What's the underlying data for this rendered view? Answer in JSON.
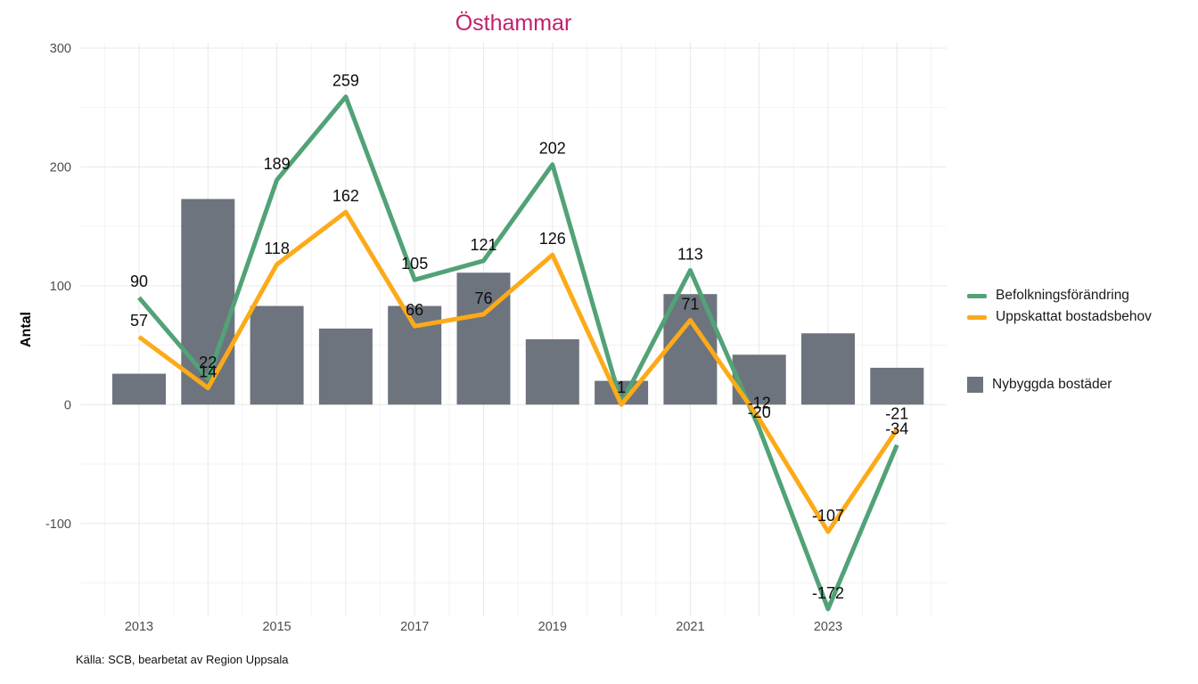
{
  "title": "Östhammar",
  "caption": "Källa: SCB, bearbetat av Region Uppsala",
  "y_axis": {
    "label": "Antal",
    "ticks": [
      300,
      200,
      100,
      0,
      -100
    ],
    "minor_ticks": [
      250,
      150,
      50,
      -50,
      -150
    ]
  },
  "x_axis": {
    "ticks": [
      "2013",
      "2015",
      "2017",
      "2019",
      "2021",
      "2023"
    ]
  },
  "legend": {
    "line_items": [
      {
        "label": "Befolkningsförändring",
        "color": "#52a277"
      },
      {
        "label": "Uppskattat bostadsbehov",
        "color": "#fcaa19"
      }
    ],
    "bar_item": {
      "label": "Nybyggda bostäder",
      "color": "#6d747d"
    }
  },
  "colors": {
    "title": "#c1206e",
    "green_line": "#52a277",
    "orange_line": "#fcaa19",
    "bar": "#6d747d",
    "grid_major": "#e8e8e8",
    "grid_minor": "#f3f3f3",
    "tick_text": "#4d4d4d",
    "label_text": "#0d0d0d"
  },
  "chart_data": {
    "type": "bar+line combo",
    "title": "Östhammar",
    "ylabel": "Antal",
    "xlabel": "",
    "ylim": [
      -180,
      305
    ],
    "grid": true,
    "legend_position": "right",
    "categories": [
      2013,
      2014,
      2015,
      2016,
      2017,
      2018,
      2019,
      2020,
      2021,
      2022,
      2023,
      2024
    ],
    "series": [
      {
        "name": "Nybyggda bostäder",
        "type": "bar",
        "color": "#6d747d",
        "values": [
          26,
          173,
          83,
          64,
          83,
          111,
          55,
          20,
          93,
          42,
          60,
          31
        ],
        "labels": [
          "",
          "",
          "",
          "",
          "",
          "",
          "",
          "",
          "",
          "",
          "",
          ""
        ]
      },
      {
        "name": "Befolkningsförändring",
        "type": "line",
        "color": "#52a277",
        "values": [
          90,
          22,
          189,
          259,
          105,
          121,
          202,
          1,
          113,
          -20,
          -172,
          -34
        ],
        "labels": [
          "90",
          "22",
          "189",
          "259",
          "105",
          "121",
          "202",
          "1",
          "113",
          "-20",
          "-172",
          "-34"
        ]
      },
      {
        "name": "Uppskattat bostadsbehov",
        "type": "line",
        "color": "#fcaa19",
        "values": [
          57,
          14,
          118,
          162,
          66,
          76,
          126,
          0,
          71,
          -12,
          -107,
          -21
        ],
        "labels": [
          "57",
          "14",
          "118",
          "162",
          "66",
          "76",
          "126",
          "",
          "71",
          "-12",
          "-107",
          "-21"
        ]
      }
    ]
  }
}
